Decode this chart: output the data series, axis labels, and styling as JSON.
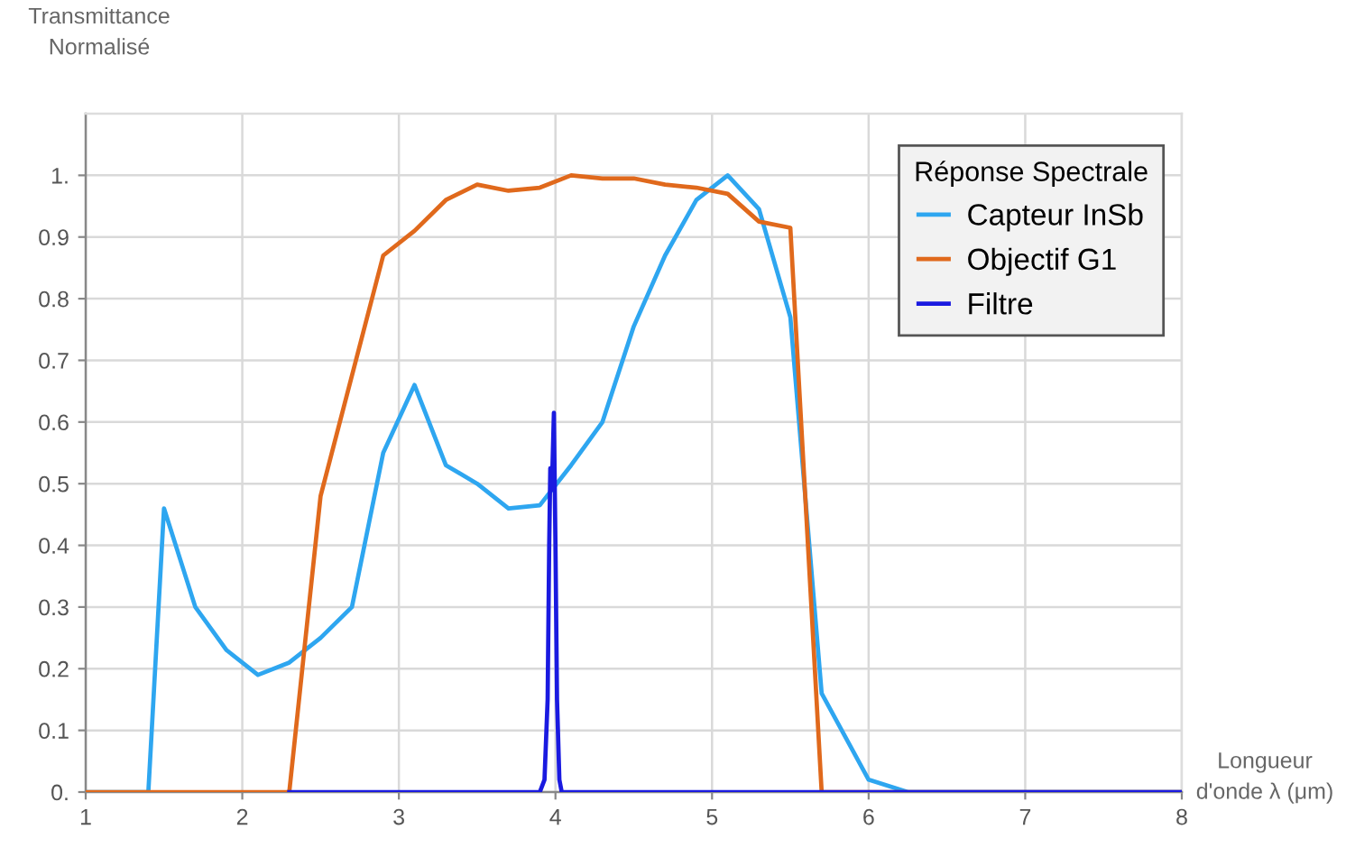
{
  "chart_data": {
    "type": "line",
    "xlabel": "Longueur\nd'onde λ (μm)",
    "ylabel": "Transmittance\nNormalisé",
    "legend_title": "Réponse Spectrale",
    "xlim": [
      1,
      8
    ],
    "xticks": [
      1,
      2,
      3,
      4,
      5,
      6,
      7,
      8
    ],
    "ylim": [
      0,
      1.1
    ],
    "yticks": [
      {
        "value": 0,
        "label": "0."
      },
      0.1,
      0.2,
      0.3,
      0.4,
      0.5,
      0.6,
      0.7,
      0.8,
      0.9,
      {
        "value": 1,
        "label": "1."
      }
    ],
    "grid": true,
    "legend": "top right",
    "marker": "none",
    "line_style": "solid",
    "series": [
      {
        "name": "Capteur InSb",
        "color": "#2ea6f0",
        "x": [
          1,
          1.4,
          1.5,
          1.7,
          1.9,
          2.1,
          2.3,
          2.5,
          2.7,
          2.9,
          3.1,
          3.3,
          3.5,
          3.7,
          3.9,
          4.1,
          4.3,
          4.5,
          4.7,
          4.9,
          5.1,
          5.3,
          5.5,
          5.7,
          6.0,
          6.25,
          8
        ],
        "values": [
          0,
          0,
          0.46,
          0.3,
          0.23,
          0.19,
          0.21,
          0.25,
          0.3,
          0.55,
          0.66,
          0.53,
          0.5,
          0.46,
          0.465,
          0.53,
          0.6,
          0.755,
          0.87,
          0.96,
          1.0,
          0.945,
          0.77,
          0.16,
          0.02,
          0,
          0
        ]
      },
      {
        "name": "Objectif G1",
        "color": "#e0691c",
        "x": [
          1,
          2.3,
          2.5,
          2.9,
          3.1,
          3.3,
          3.5,
          3.7,
          3.9,
          4.1,
          4.3,
          4.5,
          4.7,
          4.9,
          5.1,
          5.3,
          5.5,
          5.7,
          8
        ],
        "values": [
          0,
          0,
          0.48,
          0.87,
          0.91,
          0.96,
          0.985,
          0.975,
          0.98,
          1.0,
          0.995,
          0.995,
          0.985,
          0.98,
          0.97,
          0.925,
          0.915,
          0,
          0
        ]
      },
      {
        "name": "Filtre",
        "color": "#1a1ae0",
        "x": [
          2.3,
          3.9,
          3.93,
          3.95,
          3.96,
          3.967,
          3.977,
          3.99,
          4.0,
          4.01,
          4.025,
          4.04,
          8
        ],
        "values": [
          0,
          0,
          0.02,
          0.15,
          0.4,
          0.525,
          0.49,
          0.615,
          0.4,
          0.15,
          0.02,
          0,
          0
        ]
      }
    ]
  }
}
